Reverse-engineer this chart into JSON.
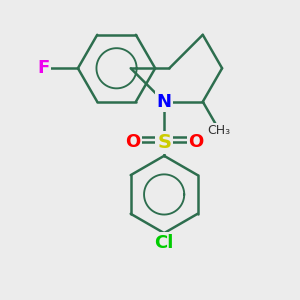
{
  "background_color": "#ececec",
  "atom_colors": {
    "F": "#ee00ee",
    "N": "#0000ff",
    "S": "#cccc00",
    "O": "#ff0000",
    "Cl": "#00cc00",
    "C": "#2d6e4e"
  },
  "bond_color": "#2d6e4e",
  "bond_width": 1.8,
  "font_size_atoms": 13,
  "figsize": [
    3.0,
    3.0
  ],
  "dpi": 100
}
